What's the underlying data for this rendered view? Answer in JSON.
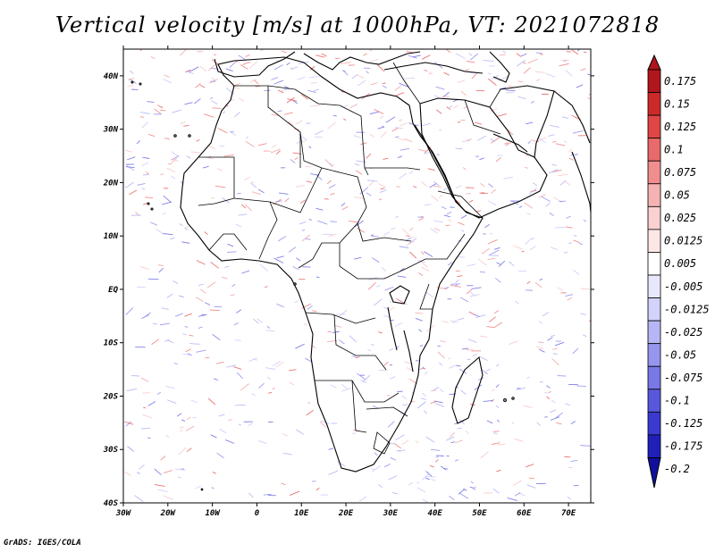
{
  "title": "Vertical velocity [m/s] at 1000hPa, VT: 2021072818",
  "footer": "GrADS: IGES/COLA",
  "map": {
    "lon_range": [
      -30,
      75
    ],
    "lat_range": [
      -40,
      45
    ],
    "lon_ticks": [
      {
        "value": -30,
        "label": "30W"
      },
      {
        "value": -20,
        "label": "20W"
      },
      {
        "value": -10,
        "label": "10W"
      },
      {
        "value": 0,
        "label": "0"
      },
      {
        "value": 10,
        "label": "10E"
      },
      {
        "value": 20,
        "label": "20E"
      },
      {
        "value": 30,
        "label": "30E"
      },
      {
        "value": 40,
        "label": "40E"
      },
      {
        "value": 50,
        "label": "50E"
      },
      {
        "value": 60,
        "label": "60E"
      },
      {
        "value": 70,
        "label": "70E"
      }
    ],
    "lat_ticks": [
      {
        "value": 40,
        "label": "40N"
      },
      {
        "value": 30,
        "label": "30N"
      },
      {
        "value": 20,
        "label": "20N"
      },
      {
        "value": 10,
        "label": "10N"
      },
      {
        "value": 0,
        "label": "EQ"
      },
      {
        "value": -10,
        "label": "10S"
      },
      {
        "value": -20,
        "label": "20S"
      },
      {
        "value": -30,
        "label": "30S"
      },
      {
        "value": -40,
        "label": "40S"
      }
    ]
  },
  "colorbar": {
    "colors": [
      "#b0161d",
      "#cc2a2a",
      "#e04646",
      "#e96a6a",
      "#f08e8e",
      "#f6b2b2",
      "#fad0d0",
      "#fde6e6",
      "#ffffff",
      "#e8e8fd",
      "#d2d2fa",
      "#b6b6f6",
      "#9696ef",
      "#7878e7",
      "#5858dd",
      "#3a3ad0",
      "#2020b8",
      "#10109c"
    ],
    "labels": [
      "0.175",
      "0.15",
      "0.125",
      "0.1",
      "0.075",
      "0.05",
      "0.025",
      "0.0125",
      "0.005",
      "-0.005",
      "-0.0125",
      "-0.025",
      "-0.05",
      "-0.075",
      "-0.1",
      "-0.125",
      "-0.175",
      "-0.2"
    ]
  }
}
